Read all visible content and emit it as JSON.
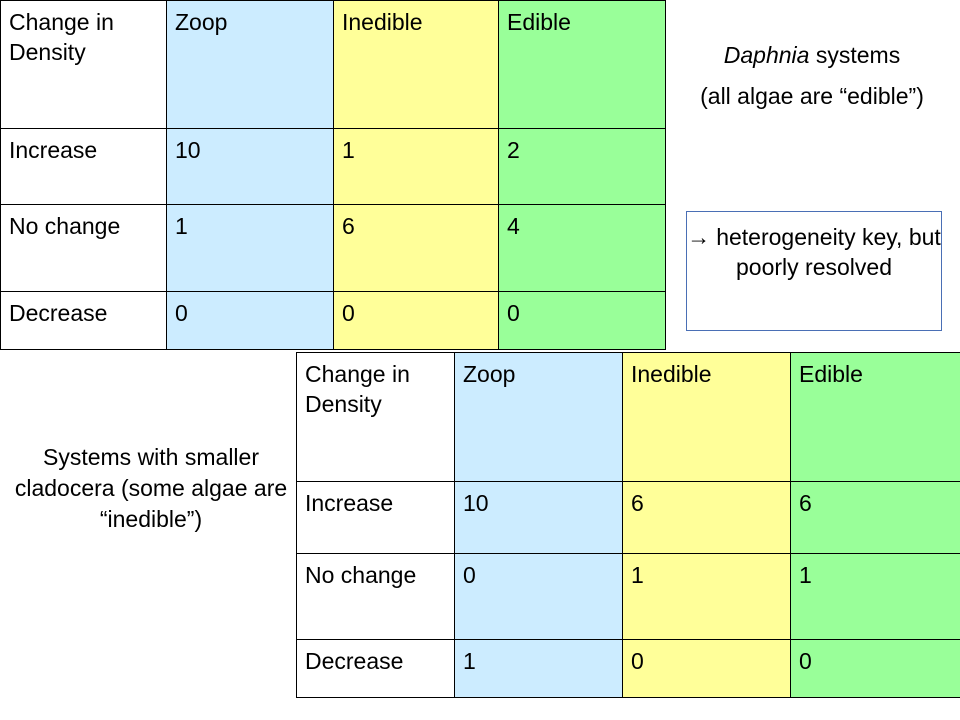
{
  "daphnia_table": {
    "header": {
      "label": "Change in Density",
      "zoop": "Zoop",
      "inedible": "Inedible",
      "edible": "Edible"
    },
    "rows": [
      {
        "label": "Increase",
        "zoop": "10",
        "inedible": "1",
        "edible": "2"
      },
      {
        "label": "No change",
        "zoop": "1",
        "inedible": "6",
        "edible": "4"
      },
      {
        "label": "Decrease",
        "zoop": "0",
        "inedible": "0",
        "edible": "0"
      }
    ]
  },
  "small_table": {
    "header": {
      "label": "Change in Density",
      "zoop": "Zoop",
      "inedible": "Inedible",
      "edible": "Edible"
    },
    "rows": [
      {
        "label": "Increase",
        "zoop": "10",
        "inedible": "6",
        "edible": "6"
      },
      {
        "label": "No change",
        "zoop": "0",
        "inedible": "1",
        "edible": "1"
      },
      {
        "label": "Decrease",
        "zoop": "1",
        "inedible": "0",
        "edible": "0"
      }
    ]
  },
  "daphnia_note": {
    "title_italic": "Daphnia",
    "title_rest": " systems",
    "subtitle": "(all algae are “edible”)"
  },
  "heterogeneity_note": {
    "arrow_icon": "right-arrow-icon",
    "arrow": "→",
    "text": "heterogeneity key, but poorly resolved"
  },
  "small_note": {
    "text": "Systems with smaller cladocera (some algae are “inedible”)"
  },
  "colors": {
    "zoop": "#ccecff",
    "inedible": "#ffff99",
    "edible": "#99ff99",
    "label": "#ffffff",
    "box_border": "#4a6fb5"
  }
}
